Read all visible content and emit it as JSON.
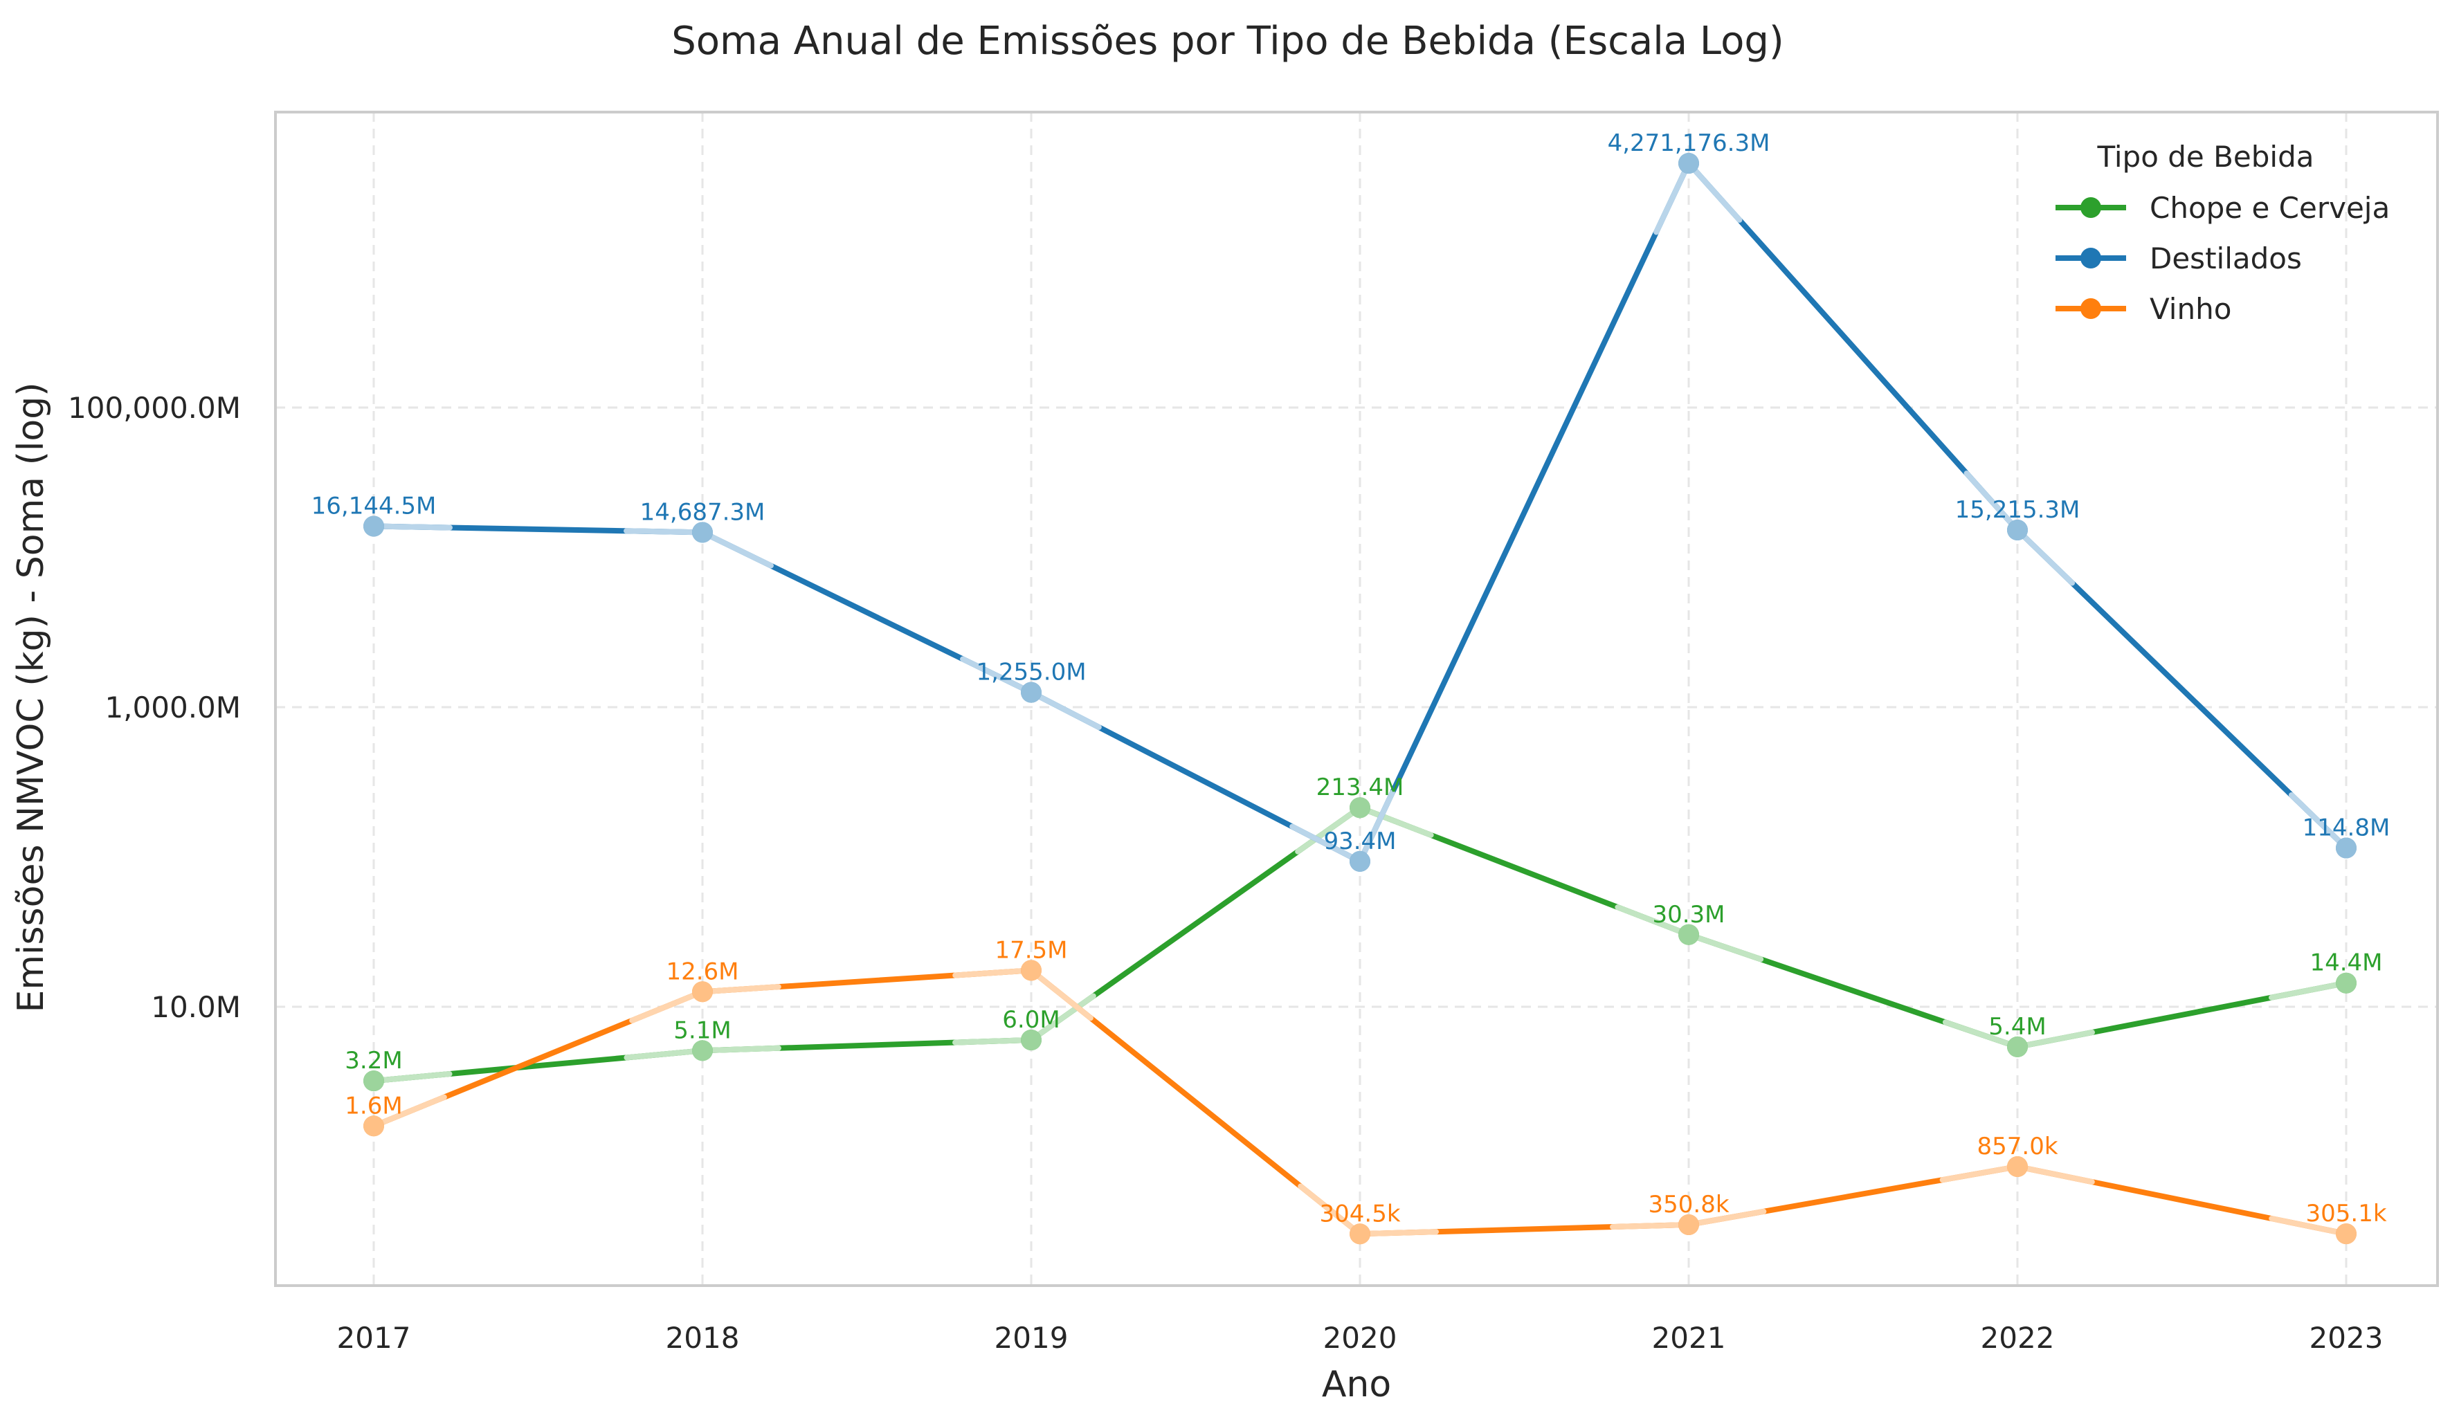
{
  "chart_data": {
    "type": "line",
    "title": "Soma Anual de Emissões por Tipo de Bebida (Escala Log)",
    "xlabel": "Ano",
    "ylabel": "Emissões NMVOC (kg) - Soma (log)",
    "yscale": "log",
    "ylim": [
      100000,
      9000000000000
    ],
    "grid": true,
    "legend_title": "Tipo de Bebida",
    "legend_position": "top-right",
    "categories": [
      "2017",
      "2018",
      "2019",
      "2020",
      "2021",
      "2022",
      "2023"
    ],
    "y_ticks": [
      {
        "value": 10000000,
        "label": "10.0M"
      },
      {
        "value": 1000000000,
        "label": "1,000.0M"
      },
      {
        "value": 100000000000,
        "label": "100,000.0M"
      }
    ],
    "series": [
      {
        "name": "Chope e Cerveja",
        "color": "#2ca02c",
        "light_color": "#c2e5c2",
        "values": [
          3200000,
          5100000,
          6000000,
          213400000,
          30300000,
          5400000,
          14400000
        ],
        "labels": [
          "3.2M",
          "5.1M",
          "6.0M",
          "213.4M",
          "30.3M",
          "5.4M",
          "14.4M"
        ]
      },
      {
        "name": "Destilados",
        "color": "#1f77b4",
        "light_color": "#b9d5ea",
        "values": [
          16144500000,
          14687300000,
          1255000000,
          93400000,
          4271176300000,
          15215300000,
          114800000
        ],
        "labels": [
          "16,144.5M",
          "14,687.3M",
          "1,255.0M",
          "93.4M",
          "4,271,176.3M",
          "15,215.3M",
          "114.8M"
        ]
      },
      {
        "name": "Vinho",
        "color": "#ff7f0e",
        "light_color": "#ffd5ae",
        "values": [
          1600000,
          12600000,
          17500000,
          304500,
          350800,
          857000,
          305100
        ],
        "labels": [
          "1.6M",
          "12.6M",
          "17.5M",
          "304.5k",
          "350.8k",
          "857.0k",
          "305.1k"
        ]
      }
    ]
  }
}
